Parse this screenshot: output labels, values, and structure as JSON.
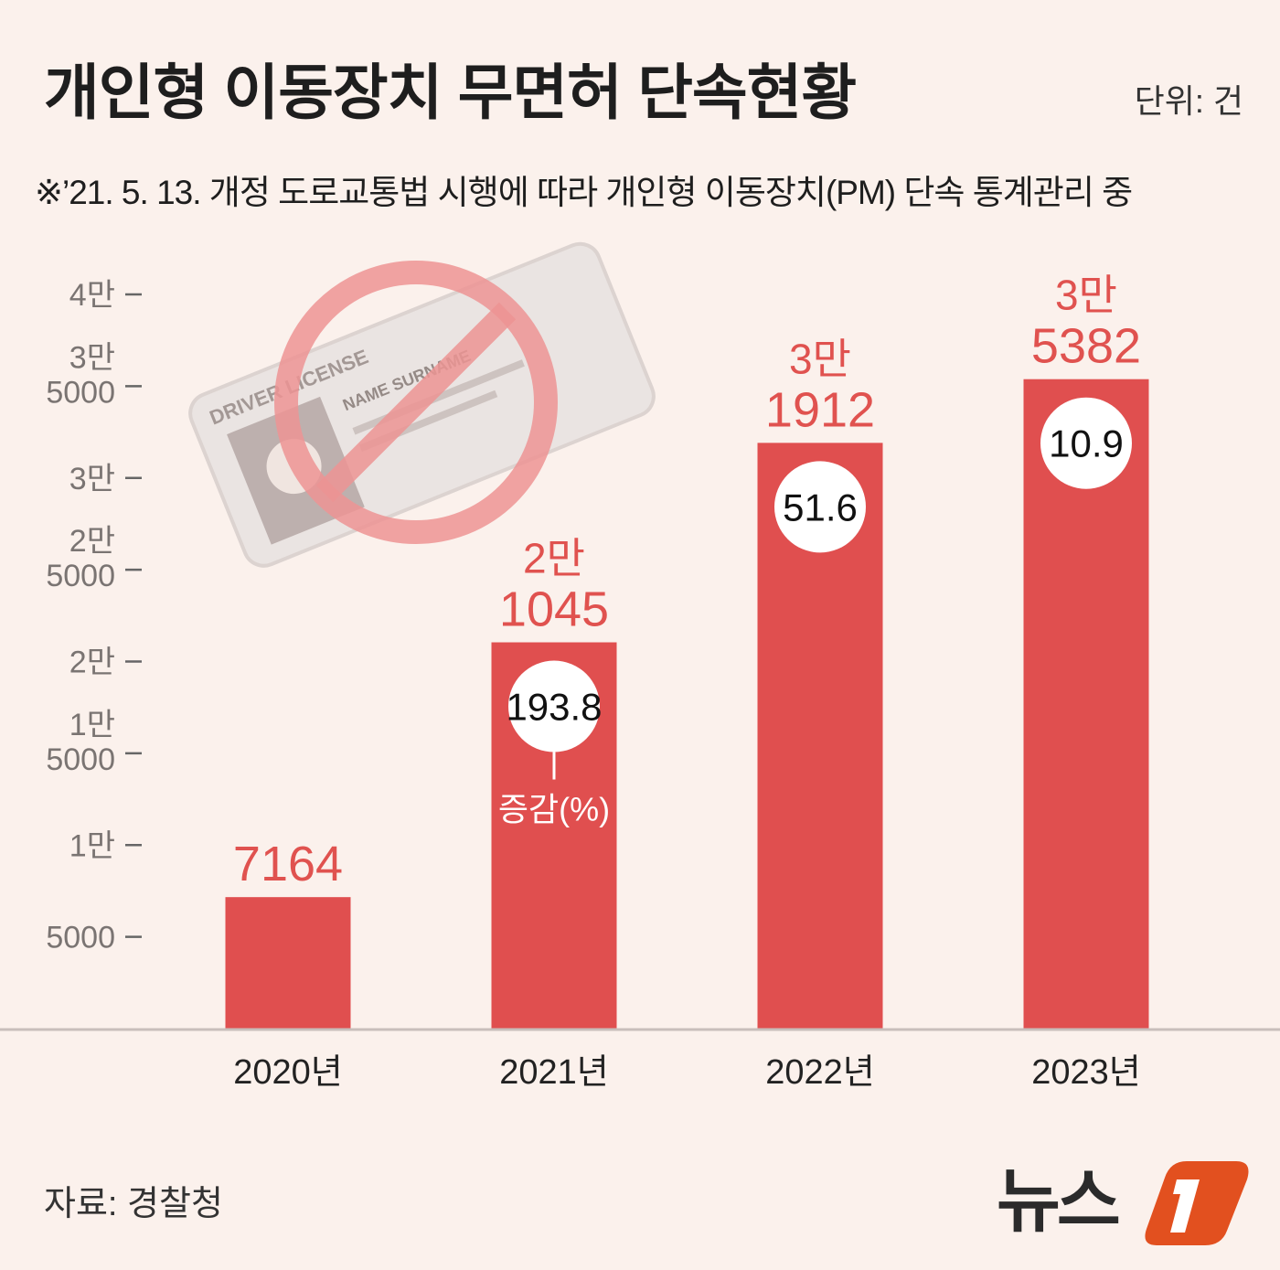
{
  "title": "개인형 이동장치 무면허 단속현황",
  "unit": "단위: 건",
  "note": "※’21. 5. 13. 개정 도로교통법 시행에 따라 개인형 이동장치(PM) 단속 통계관리 중",
  "source": "자료: 경찰청",
  "logo_text": "뉴스1",
  "chart_data": {
    "type": "bar",
    "categories": [
      "2020년",
      "2021년",
      "2022년",
      "2023년"
    ],
    "values": [
      7164,
      21045,
      31912,
      35382
    ],
    "value_labels": [
      [
        "7164"
      ],
      [
        "2만",
        "1045"
      ],
      [
        "3만",
        "1912"
      ],
      [
        "3만",
        "5382"
      ]
    ],
    "change_pct": [
      null,
      "193.8",
      "51.6",
      "10.9"
    ],
    "change_label": "증감(%)",
    "ylim": [
      0,
      40000
    ],
    "yticks": [
      {
        "value": 5000,
        "label": [
          "5000"
        ]
      },
      {
        "value": 10000,
        "label": [
          "1만"
        ]
      },
      {
        "value": 15000,
        "label": [
          "1만",
          "5000"
        ]
      },
      {
        "value": 20000,
        "label": [
          "2만"
        ]
      },
      {
        "value": 25000,
        "label": [
          "2만",
          "5000"
        ]
      },
      {
        "value": 30000,
        "label": [
          "3만"
        ]
      },
      {
        "value": 35000,
        "label": [
          "3만",
          "5000"
        ]
      },
      {
        "value": 40000,
        "label": [
          "4만"
        ]
      }
    ],
    "grid": false,
    "colors": {
      "bar": "#e04f4f",
      "label": "#e0524f",
      "background": "#fbf1ec",
      "logo": "#e2501f"
    }
  }
}
